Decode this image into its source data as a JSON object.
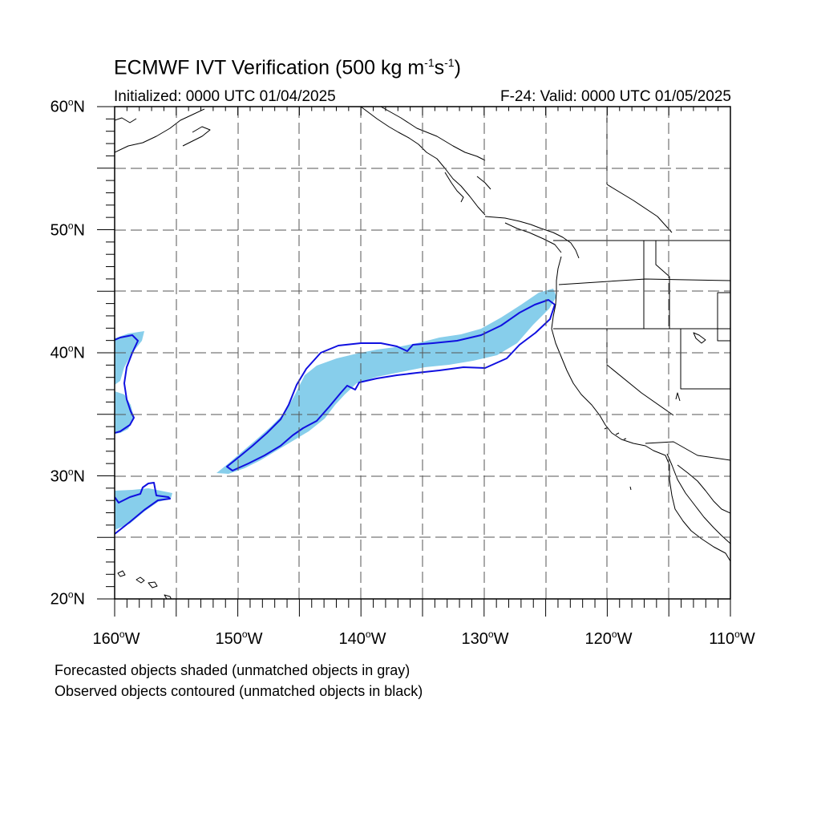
{
  "header": {
    "title_main": "ECMWF IVT Verification (500 kg m",
    "title_exp1": "-1",
    "title_mid": "s",
    "title_exp2": "-1",
    "title_end": ")",
    "initialized": "Initialized: 0000 UTC 01/04/2025",
    "valid": "F-24: Valid: 0000 UTC 01/05/2025"
  },
  "axes": {
    "lat_labels": [
      {
        "num": "60",
        "hemi": "N"
      },
      {
        "num": "50",
        "hemi": "N"
      },
      {
        "num": "40",
        "hemi": "N"
      },
      {
        "num": "30",
        "hemi": "N"
      },
      {
        "num": "20",
        "hemi": "N"
      }
    ],
    "lon_labels": [
      {
        "num": "160",
        "hemi": "W"
      },
      {
        "num": "150",
        "hemi": "W"
      },
      {
        "num": "140",
        "hemi": "W"
      },
      {
        "num": "130",
        "hemi": "W"
      },
      {
        "num": "120",
        "hemi": "W"
      },
      {
        "num": "110",
        "hemi": "W"
      }
    ],
    "deg_symbol": "o"
  },
  "map": {
    "lon_range": [
      -160,
      -110
    ],
    "lat_range": [
      20,
      60
    ],
    "gridline_spacing_deg": 5,
    "forecast_fill_color": "#87ceeb",
    "observed_contour_color": "#1010e0",
    "coastline_color": "#000000",
    "objects": [
      {
        "name": "main-atmospheric-river",
        "forecast": true,
        "observed": true
      },
      {
        "name": "west-edge-north-object",
        "forecast": true,
        "observed": true
      },
      {
        "name": "west-edge-south-object",
        "forecast": true,
        "observed": true
      }
    ]
  },
  "footer": {
    "line1": "Forecasted objects shaded (unmatched objects in gray)",
    "line2": "Observed objects contoured (unmatched objects in black)"
  }
}
